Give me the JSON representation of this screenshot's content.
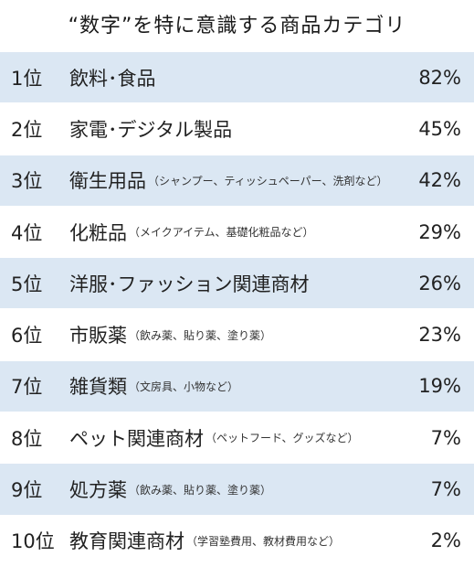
{
  "chart_data": {
    "type": "table",
    "title": "“数字”を特に意識する商品カテゴリ",
    "colors": {
      "odd_row": "#dbe7f3",
      "even_row": "#ffffff"
    },
    "rows": [
      {
        "rank": "1位",
        "category": "飲料･食品",
        "note": "",
        "value": 82,
        "value_label": "82%"
      },
      {
        "rank": "2位",
        "category": "家電･デジタル製品",
        "note": "",
        "value": 45,
        "value_label": "45%"
      },
      {
        "rank": "3位",
        "category": "衛生用品",
        "note": "（シャンプー、ティッシュペーパー、洗剤など）",
        "value": 42,
        "value_label": "42%"
      },
      {
        "rank": "4位",
        "category": "化粧品",
        "note": "（メイクアイテム、基礎化粧品など）",
        "value": 29,
        "value_label": "29%"
      },
      {
        "rank": "5位",
        "category": "洋服･ファッション関連商材",
        "note": "",
        "value": 26,
        "value_label": "26%"
      },
      {
        "rank": "6位",
        "category": "市販薬",
        "note": "（飲み薬、貼り薬、塗り薬）",
        "value": 23,
        "value_label": "23%"
      },
      {
        "rank": "7位",
        "category": "雑貨類",
        "note": "（文房具、小物など）",
        "value": 19,
        "value_label": "19%"
      },
      {
        "rank": "8位",
        "category": "ペット関連商材",
        "note": "（ペットフード、グッズなど）",
        "value": 7,
        "value_label": "7%"
      },
      {
        "rank": "9位",
        "category": "処方薬",
        "note": "（飲み薬、貼り薬、塗り薬）",
        "value": 7,
        "value_label": "7%"
      },
      {
        "rank": "10位",
        "category": "教育関連商材",
        "note": "（学習塾費用、教材費用など）",
        "value": 2,
        "value_label": "2%"
      }
    ]
  }
}
